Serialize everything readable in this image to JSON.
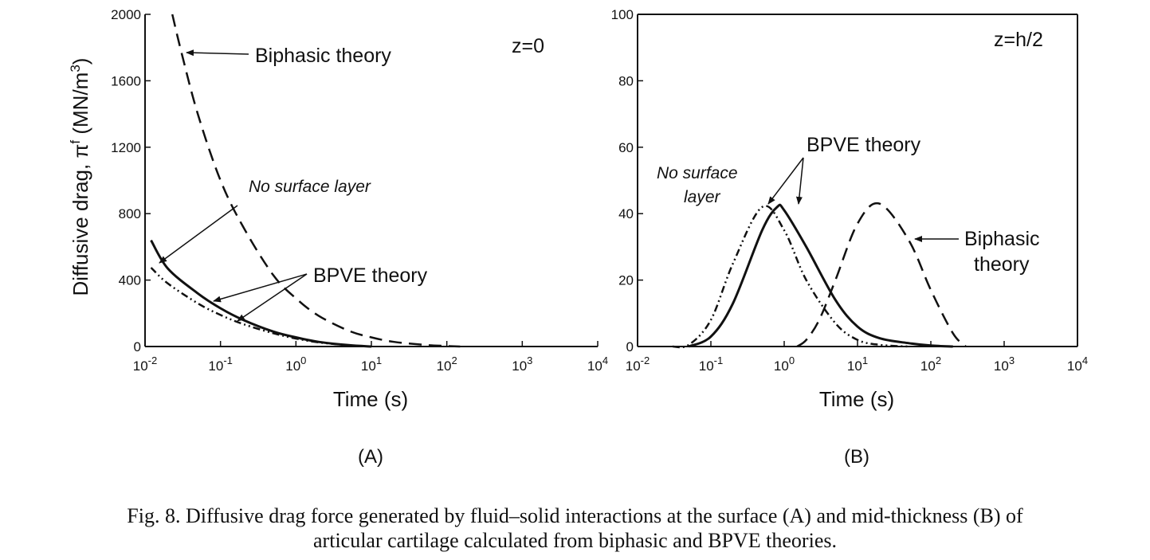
{
  "chart_data": [
    {
      "type": "line",
      "panel_label": "(A)",
      "annotation": "z=0",
      "xlabel": "Time (s)",
      "ylabel": "Diffusive drag, π^f (MN/m^3)",
      "ylabel_parts": {
        "main": "Diffusive drag, π",
        "sup1": "f",
        "unit": " (MN/m",
        "sup2": "3",
        "close": ")"
      },
      "x_scale": "log",
      "xlim": [
        0.01,
        10000
      ],
      "ylim": [
        0,
        2000
      ],
      "x_ticks": [
        {
          "base": "10",
          "exp": "-2",
          "value": 0.01
        },
        {
          "base": "10",
          "exp": "-1",
          "value": 0.1
        },
        {
          "base": "10",
          "exp": "0",
          "value": 1
        },
        {
          "base": "10",
          "exp": "1",
          "value": 10
        },
        {
          "base": "10",
          "exp": "2",
          "value": 100
        },
        {
          "base": "10",
          "exp": "3",
          "value": 1000
        },
        {
          "base": "10",
          "exp": "4",
          "value": 10000
        }
      ],
      "y_ticks": [
        "0",
        "400",
        "800",
        "1200",
        "1600",
        "2000"
      ],
      "grid": false,
      "labels": {
        "biphasic": "Biphasic theory",
        "no_surface": "No surface layer",
        "bpve": "BPVE theory"
      },
      "series": [
        {
          "name": "Biphasic theory",
          "style": "dashed",
          "x": [
            0.023,
            0.03,
            0.05,
            0.1,
            0.2,
            0.5,
            1,
            2,
            5,
            10,
            20,
            50,
            100,
            150
          ],
          "y": [
            2000,
            1780,
            1400,
            1000,
            720,
            430,
            290,
            185,
            95,
            55,
            28,
            10,
            3,
            0
          ]
        },
        {
          "name": "BPVE theory",
          "style": "solid",
          "x": [
            0.012,
            0.02,
            0.05,
            0.1,
            0.2,
            0.5,
            1,
            2,
            5,
            10
          ],
          "y": [
            640,
            470,
            320,
            230,
            160,
            90,
            55,
            28,
            8,
            0
          ]
        },
        {
          "name": "No surface layer",
          "style": "dash-dot-dot",
          "x": [
            0.012,
            0.02,
            0.05,
            0.1,
            0.2,
            0.5,
            1,
            2,
            5,
            10
          ],
          "y": [
            475,
            380,
            260,
            190,
            135,
            80,
            48,
            25,
            7,
            0
          ]
        }
      ]
    },
    {
      "type": "line",
      "panel_label": "(B)",
      "annotation": "z=h/2",
      "xlabel": "Time (s)",
      "x_scale": "log",
      "xlim": [
        0.01,
        10000
      ],
      "ylim": [
        0,
        100
      ],
      "x_ticks": [
        {
          "base": "10",
          "exp": "-2",
          "value": 0.01
        },
        {
          "base": "10",
          "exp": "-1",
          "value": 0.1
        },
        {
          "base": "10",
          "exp": "0",
          "value": 1
        },
        {
          "base": "10",
          "exp": "1",
          "value": 10
        },
        {
          "base": "10",
          "exp": "2",
          "value": 100
        },
        {
          "base": "10",
          "exp": "3",
          "value": 1000
        },
        {
          "base": "10",
          "exp": "4",
          "value": 10000
        }
      ],
      "y_ticks": [
        "0",
        "20",
        "40",
        "60",
        "80",
        "100"
      ],
      "grid": false,
      "labels": {
        "bpve": "BPVE theory",
        "no_surface_line1": "No surface",
        "no_surface_line2": "layer",
        "biphasic_line1": "Biphasic",
        "biphasic_line2": "theory"
      },
      "series": [
        {
          "name": "BPVE theory",
          "style": "solid",
          "x": [
            0.05,
            0.1,
            0.2,
            0.5,
            0.8,
            1,
            2,
            5,
            10,
            20,
            50,
            100,
            200
          ],
          "y": [
            0,
            3,
            13,
            35,
            42,
            41,
            30,
            14,
            6,
            2.5,
            1,
            0.3,
            0
          ]
        },
        {
          "name": "No surface layer",
          "style": "dash-dot-dot",
          "x": [
            0.03,
            0.05,
            0.1,
            0.2,
            0.5,
            1,
            2,
            5,
            10,
            20,
            50
          ],
          "y": [
            0,
            0.5,
            8,
            25,
            42,
            35,
            20,
            7,
            2,
            0.5,
            0
          ]
        },
        {
          "name": "Biphasic theory",
          "style": "dashed",
          "x": [
            1.5,
            2,
            3,
            5,
            10,
            20,
            50,
            100,
            200,
            300
          ],
          "y": [
            0,
            2,
            8,
            20,
            37,
            43,
            32,
            17,
            4,
            0
          ]
        }
      ]
    }
  ],
  "caption": {
    "line1": "Fig. 8.  Diffusive drag force generated by fluid–solid interactions at the surface (A) and mid-thickness (B) of",
    "line2": "articular cartilage calculated from biphasic and BPVE theories."
  }
}
